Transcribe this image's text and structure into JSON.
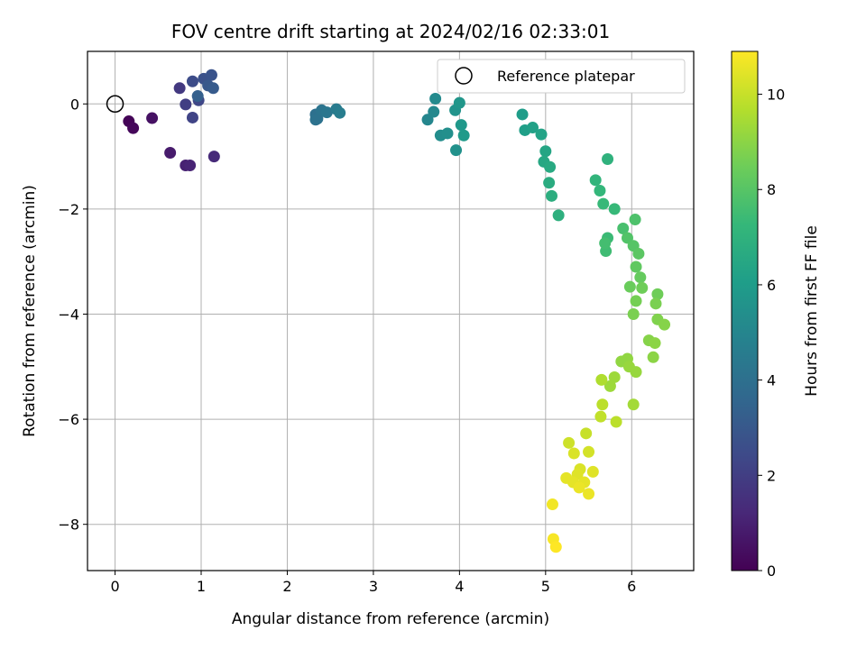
{
  "chart_data": {
    "type": "scatter",
    "title": "FOV centre drift starting at 2024/02/16 02:33:01",
    "xlabel": "Angular distance from reference (arcmin)",
    "ylabel": "Rotation from reference (arcmin)",
    "colorbar_label": "Hours from first FF file",
    "xlim": [
      -0.32,
      6.72
    ],
    "ylim": [
      -8.88,
      1.0
    ],
    "x_ticks": [
      0,
      1,
      2,
      3,
      4,
      5,
      6
    ],
    "y_ticks": [
      0,
      -2,
      -4,
      -6,
      -8
    ],
    "colorbar_range": [
      0,
      10.9
    ],
    "colorbar_ticks": [
      0,
      2,
      4,
      6,
      8,
      10
    ],
    "colormap": "viridis",
    "grid": true,
    "legend": {
      "placement": "top-right",
      "entries": [
        "Reference platepar"
      ]
    },
    "reference_point": {
      "x": 0,
      "y": 0,
      "marker": "open-circle"
    },
    "points": [
      [
        0.16,
        -0.33,
        0.1
      ],
      [
        0.21,
        -0.46,
        0.2
      ],
      [
        0.43,
        -0.27,
        0.5
      ],
      [
        0.64,
        -0.93,
        0.8
      ],
      [
        0.82,
        -1.17,
        1.0
      ],
      [
        0.87,
        -1.17,
        1.1
      ],
      [
        1.15,
        -1.0,
        1.3
      ],
      [
        0.75,
        0.3,
        1.8
      ],
      [
        0.82,
        -0.01,
        2.0
      ],
      [
        0.9,
        -0.26,
        2.2
      ],
      [
        0.97,
        0.07,
        2.3
      ],
      [
        0.9,
        0.43,
        2.5
      ],
      [
        1.03,
        0.48,
        2.7
      ],
      [
        1.12,
        0.55,
        2.8
      ],
      [
        1.08,
        0.35,
        3.0
      ],
      [
        1.14,
        0.3,
        3.1
      ],
      [
        0.96,
        0.15,
        3.3
      ],
      [
        2.33,
        -0.2,
        4.0
      ],
      [
        2.35,
        -0.28,
        4.1
      ],
      [
        2.4,
        -0.12,
        4.2
      ],
      [
        2.46,
        -0.16,
        4.3
      ],
      [
        2.57,
        -0.1,
        4.5
      ],
      [
        2.61,
        -0.17,
        4.6
      ],
      [
        2.33,
        -0.3,
        4.1
      ],
      [
        3.63,
        -0.3,
        5.0
      ],
      [
        3.7,
        -0.15,
        5.1
      ],
      [
        3.72,
        0.1,
        5.2
      ],
      [
        3.78,
        -0.6,
        5.3
      ],
      [
        3.86,
        -0.56,
        5.4
      ],
      [
        3.96,
        -0.88,
        5.5
      ],
      [
        3.95,
        -0.12,
        5.6
      ],
      [
        4.0,
        0.02,
        5.7
      ],
      [
        4.02,
        -0.4,
        5.8
      ],
      [
        4.05,
        -0.6,
        5.9
      ],
      [
        4.73,
        -0.2,
        6.0
      ],
      [
        4.76,
        -0.5,
        6.1
      ],
      [
        4.85,
        -0.45,
        6.2
      ],
      [
        4.95,
        -0.58,
        6.3
      ],
      [
        5.0,
        -0.9,
        6.4
      ],
      [
        4.98,
        -1.1,
        6.5
      ],
      [
        5.05,
        -1.2,
        6.6
      ],
      [
        5.04,
        -1.5,
        6.7
      ],
      [
        5.07,
        -1.75,
        6.8
      ],
      [
        5.15,
        -2.12,
        6.9
      ],
      [
        5.72,
        -1.05,
        7.0
      ],
      [
        5.58,
        -1.45,
        7.1
      ],
      [
        5.63,
        -1.65,
        7.2
      ],
      [
        5.67,
        -1.9,
        7.3
      ],
      [
        5.8,
        -2.0,
        7.3
      ],
      [
        5.72,
        -2.55,
        7.4
      ],
      [
        5.7,
        -2.8,
        7.5
      ],
      [
        5.69,
        -2.65,
        7.6
      ],
      [
        5.9,
        -2.37,
        7.7
      ],
      [
        6.04,
        -2.2,
        7.8
      ],
      [
        5.95,
        -2.55,
        7.9
      ],
      [
        6.02,
        -2.7,
        8.0
      ],
      [
        6.08,
        -2.85,
        8.1
      ],
      [
        6.05,
        -3.1,
        8.2
      ],
      [
        6.1,
        -3.3,
        8.3
      ],
      [
        5.98,
        -3.48,
        8.4
      ],
      [
        6.12,
        -3.5,
        8.5
      ],
      [
        6.3,
        -3.62,
        8.5
      ],
      [
        6.05,
        -3.75,
        8.6
      ],
      [
        6.28,
        -3.8,
        8.7
      ],
      [
        6.02,
        -4.0,
        8.7
      ],
      [
        6.3,
        -4.1,
        8.8
      ],
      [
        6.38,
        -4.2,
        8.9
      ],
      [
        6.2,
        -4.5,
        8.9
      ],
      [
        6.27,
        -4.55,
        9.0
      ],
      [
        6.25,
        -4.82,
        9.0
      ],
      [
        5.95,
        -4.85,
        9.1
      ],
      [
        5.88,
        -4.9,
        9.1
      ],
      [
        5.97,
        -5.0,
        9.2
      ],
      [
        6.05,
        -5.1,
        9.2
      ],
      [
        5.8,
        -5.2,
        9.3
      ],
      [
        5.75,
        -5.37,
        9.3
      ],
      [
        6.02,
        -5.72,
        9.4
      ],
      [
        5.65,
        -5.25,
        9.6
      ],
      [
        5.66,
        -5.72,
        9.8
      ],
      [
        5.64,
        -5.95,
        9.9
      ],
      [
        5.82,
        -6.05,
        9.8
      ],
      [
        5.47,
        -6.27,
        10.0
      ],
      [
        5.27,
        -6.45,
        10.1
      ],
      [
        5.5,
        -6.62,
        10.2
      ],
      [
        5.33,
        -6.65,
        10.3
      ],
      [
        5.4,
        -6.95,
        10.3
      ],
      [
        5.55,
        -7.0,
        10.4
      ],
      [
        5.37,
        -7.05,
        10.4
      ],
      [
        5.24,
        -7.12,
        10.5
      ],
      [
        5.32,
        -7.2,
        10.5
      ],
      [
        5.45,
        -7.2,
        10.5
      ],
      [
        5.39,
        -7.3,
        10.6
      ],
      [
        5.5,
        -7.42,
        10.6
      ],
      [
        5.08,
        -7.62,
        10.7
      ],
      [
        5.09,
        -8.28,
        10.8
      ],
      [
        5.12,
        -8.43,
        10.9
      ]
    ]
  }
}
